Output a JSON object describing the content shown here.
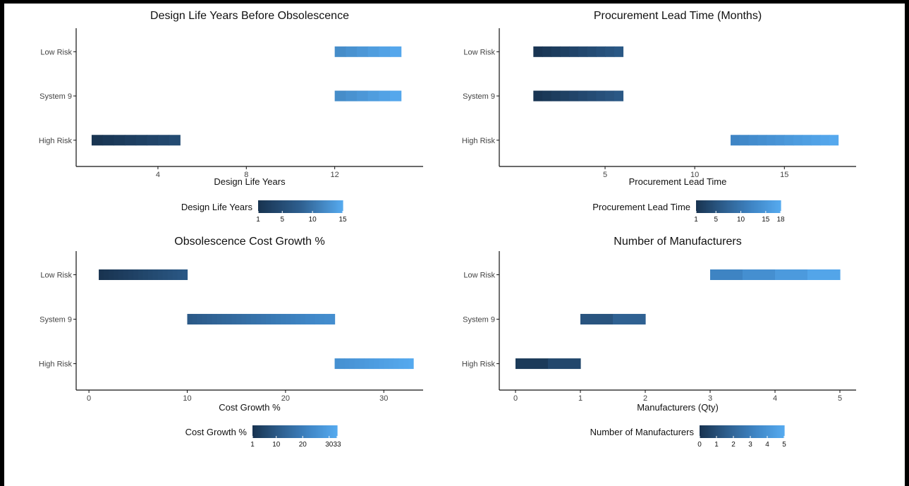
{
  "chart_data": [
    {
      "type": "bar",
      "title": "Design Life Years Before Obsolescence",
      "xlabel": "Design Life Years",
      "xlim": [
        0.3,
        16.0
      ],
      "xticks": [
        "4",
        "8",
        "12"
      ],
      "xtick_values": [
        4,
        8,
        12
      ],
      "categories": [
        "Low Risk",
        "System 9",
        "High Risk"
      ],
      "ranges": [
        [
          12,
          15
        ],
        [
          12,
          15
        ],
        [
          1,
          5
        ]
      ],
      "legend": {
        "title": "Design Life Years",
        "ticks": [
          "1",
          "5",
          "10",
          "15"
        ],
        "tick_values": [
          1,
          5,
          10,
          15
        ],
        "colors": [
          "#183350",
          "#2e5f8f",
          "#56aaef"
        ]
      },
      "color_scale": {
        "min": 1,
        "max": 15
      }
    },
    {
      "type": "bar",
      "title": "Procurement Lead Time (Months)",
      "xlabel": "Procurement Lead Time",
      "xlim": [
        -0.9,
        19.0
      ],
      "xticks": [
        "5",
        "10",
        "15"
      ],
      "xtick_values": [
        5,
        10,
        15
      ],
      "categories": [
        "Low Risk",
        "System 9",
        "High Risk"
      ],
      "ranges": [
        [
          1,
          6
        ],
        [
          1,
          6
        ],
        [
          12,
          18
        ]
      ],
      "legend": {
        "title": "Procurement Lead Time",
        "ticks": [
          "1",
          "5",
          "10",
          "15",
          "18"
        ],
        "tick_values": [
          1,
          5,
          10,
          15,
          18
        ],
        "colors": [
          "#183350",
          "#2e5f8f",
          "#3f86c6",
          "#56aaef"
        ]
      },
      "color_scale": {
        "min": 1,
        "max": 18
      }
    },
    {
      "type": "bar",
      "title": "Obsolescence Cost Growth %",
      "xlabel": "Cost Growth %",
      "xlim": [
        -1.3,
        34.0
      ],
      "xticks": [
        "0",
        "10",
        "20",
        "30"
      ],
      "xtick_values": [
        0,
        10,
        20,
        30
      ],
      "categories": [
        "Low Risk",
        "System 9",
        "High Risk"
      ],
      "ranges": [
        [
          1,
          10
        ],
        [
          10,
          25
        ],
        [
          25,
          33
        ]
      ],
      "legend": {
        "title": "Cost Growth %",
        "ticks": [
          "1",
          "10",
          "20",
          "30",
          "33"
        ],
        "tick_values": [
          1,
          10,
          20,
          30,
          33
        ],
        "colors": [
          "#183350",
          "#2e5f8f",
          "#3f86c6",
          "#56aaef"
        ]
      },
      "color_scale": {
        "min": 1,
        "max": 33
      }
    },
    {
      "type": "bar",
      "title": "Number of Manufacturers",
      "xlabel": "Manufacturers (Qty)",
      "xlim": [
        -0.25,
        5.25
      ],
      "xticks": [
        "0",
        "1",
        "2",
        "3",
        "4",
        "5"
      ],
      "xtick_values": [
        0,
        1,
        2,
        3,
        4,
        5
      ],
      "categories": [
        "Low Risk",
        "System 9",
        "High Risk"
      ],
      "ranges": [
        [
          3,
          5
        ],
        [
          1,
          2
        ],
        [
          0,
          1
        ]
      ],
      "legend": {
        "title": "Number of Manufacturers",
        "ticks": [
          "0",
          "1",
          "2",
          "3",
          "4",
          "5"
        ],
        "tick_values": [
          0,
          1,
          2,
          3,
          4,
          5
        ],
        "colors": [
          "#183350",
          "#2e5f8f",
          "#3f86c6",
          "#56aaef"
        ]
      },
      "color_scale": {
        "min": 0,
        "max": 5
      }
    }
  ]
}
